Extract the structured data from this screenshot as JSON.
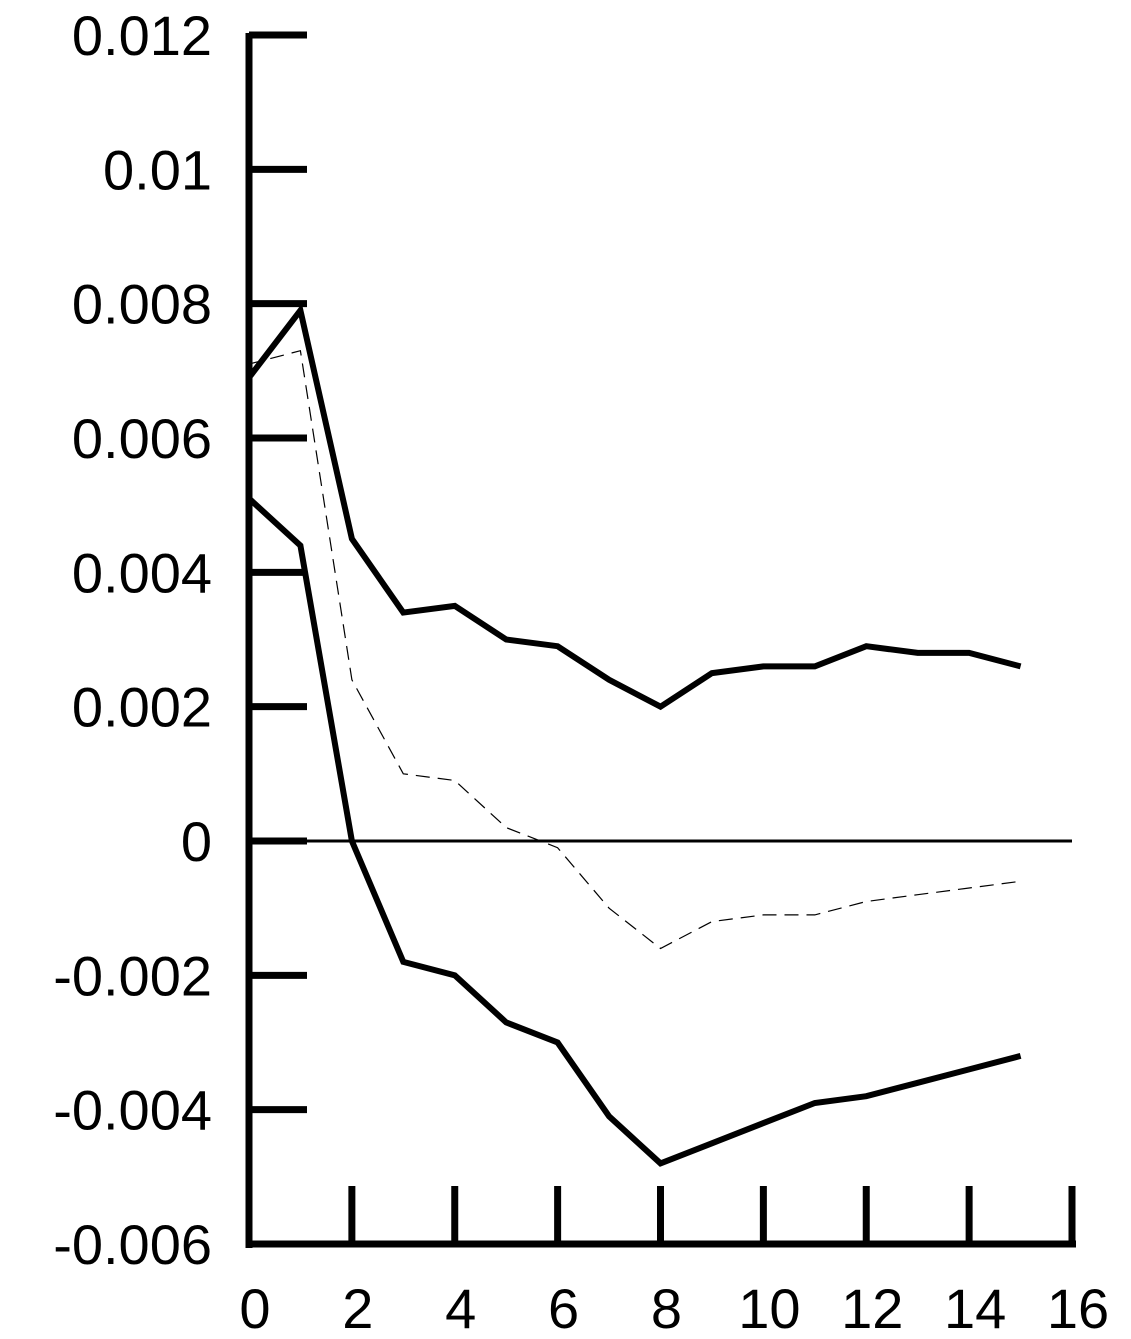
{
  "chart_data": {
    "type": "line",
    "title": "",
    "xlabel": "",
    "ylabel": "",
    "x": [
      0,
      1,
      2,
      3,
      4,
      5,
      6,
      7,
      8,
      9,
      10,
      11,
      12,
      13,
      14,
      15
    ],
    "xlim": [
      0,
      16
    ],
    "ylim": [
      -0.006,
      0.012
    ],
    "x_ticks": [
      0,
      2,
      4,
      6,
      8,
      10,
      12,
      14,
      16
    ],
    "x_tick_labels": [
      "0",
      "2",
      "4",
      "6",
      "8",
      "10",
      "12",
      "14",
      "16"
    ],
    "y_ticks": [
      -0.006,
      -0.004,
      -0.002,
      0,
      0.002,
      0.004,
      0.006,
      0.008,
      0.01,
      0.012
    ],
    "y_tick_labels": [
      "-0.006",
      "-0.004",
      "-0.002",
      "0",
      "0.002",
      "0.004",
      "0.006",
      "0.008",
      "0.01",
      "0.012"
    ],
    "grid": false,
    "legend": "none",
    "zero_line": true,
    "series": [
      {
        "style": "solid-thick",
        "color": "#000000",
        "values": [
          0.0069,
          0.0079,
          0.0045,
          0.0034,
          0.0035,
          0.003,
          0.0029,
          0.0024,
          0.002,
          0.0025,
          0.0026,
          0.0026,
          0.0029,
          0.0028,
          0.0028,
          0.0026
        ]
      },
      {
        "style": "dashed-thin",
        "color": "#000000",
        "values": [
          0.0071,
          0.0073,
          0.0024,
          0.001,
          0.0009,
          0.0002,
          -0.0001,
          -0.001,
          -0.0016,
          -0.0012,
          -0.0011,
          -0.0011,
          -0.0009,
          -0.0008,
          -0.0007,
          -0.0006
        ]
      },
      {
        "style": "solid-thick",
        "color": "#000000",
        "values": [
          0.0051,
          0.0044,
          0.0,
          -0.0018,
          -0.002,
          -0.0027,
          -0.003,
          -0.0041,
          -0.0048,
          -0.0045,
          -0.0042,
          -0.0039,
          -0.0038,
          -0.0036,
          -0.0034,
          -0.0032
        ]
      }
    ]
  }
}
